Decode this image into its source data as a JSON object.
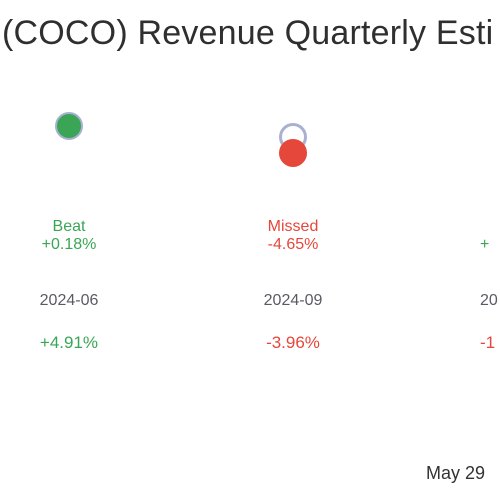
{
  "title": "(COCO) Revenue Quarterly Esti",
  "date_label": "May 29",
  "colors": {
    "beat": "#3aa655",
    "missed": "#e5473a",
    "estimate_ring": "#aab0cf"
  },
  "chart_data": {
    "type": "scatter",
    "title": "(COCO) Revenue Quarterly Esti",
    "categories": [
      "2024-06",
      "2024-09",
      "20"
    ],
    "quarters": [
      {
        "period": "2024-06",
        "result": "Beat",
        "surprise": "+0.18%",
        "yoy": "+4.91%",
        "surprise_pct": 0.18
      },
      {
        "period": "2024-09",
        "result": "Missed",
        "surprise": "-4.65%",
        "yoy": "-3.96%",
        "surprise_pct": -4.65
      },
      {
        "period": "20",
        "result": "",
        "surprise": "+",
        "yoy": "-1",
        "surprise_pct": null
      }
    ]
  }
}
